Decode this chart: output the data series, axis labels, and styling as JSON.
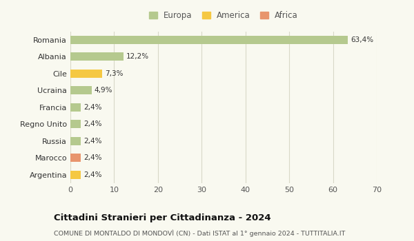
{
  "categories": [
    "Argentina",
    "Marocco",
    "Russia",
    "Regno Unito",
    "Francia",
    "Ucraina",
    "Cile",
    "Albania",
    "Romania"
  ],
  "values": [
    2.4,
    2.4,
    2.4,
    2.4,
    2.4,
    4.9,
    7.3,
    12.2,
    63.4
  ],
  "labels": [
    "2,4%",
    "2,4%",
    "2,4%",
    "2,4%",
    "2,4%",
    "4,9%",
    "7,3%",
    "12,2%",
    "63,4%"
  ],
  "continents": [
    "America",
    "Africa",
    "Europa",
    "Europa",
    "Europa",
    "Europa",
    "America",
    "Europa",
    "Europa"
  ],
  "colors": {
    "Europa": "#b5c98e",
    "America": "#f5c842",
    "Africa": "#e8956d"
  },
  "legend": [
    {
      "label": "Europa",
      "color": "#b5c98e"
    },
    {
      "label": "America",
      "color": "#f5c842"
    },
    {
      "label": "Africa",
      "color": "#e8956d"
    }
  ],
  "xlim": [
    0,
    70
  ],
  "xticks": [
    0,
    10,
    20,
    30,
    40,
    50,
    60,
    70
  ],
  "title": "Cittadini Stranieri per Cittadinanza - 2024",
  "subtitle": "COMUNE DI MONTALDO DI MONDOVÌ (CN) - Dati ISTAT al 1° gennaio 2024 - TUTTITALIA.IT",
  "background_color": "#f9f9f0",
  "grid_color": "#d8d8c8",
  "bar_height": 0.5
}
